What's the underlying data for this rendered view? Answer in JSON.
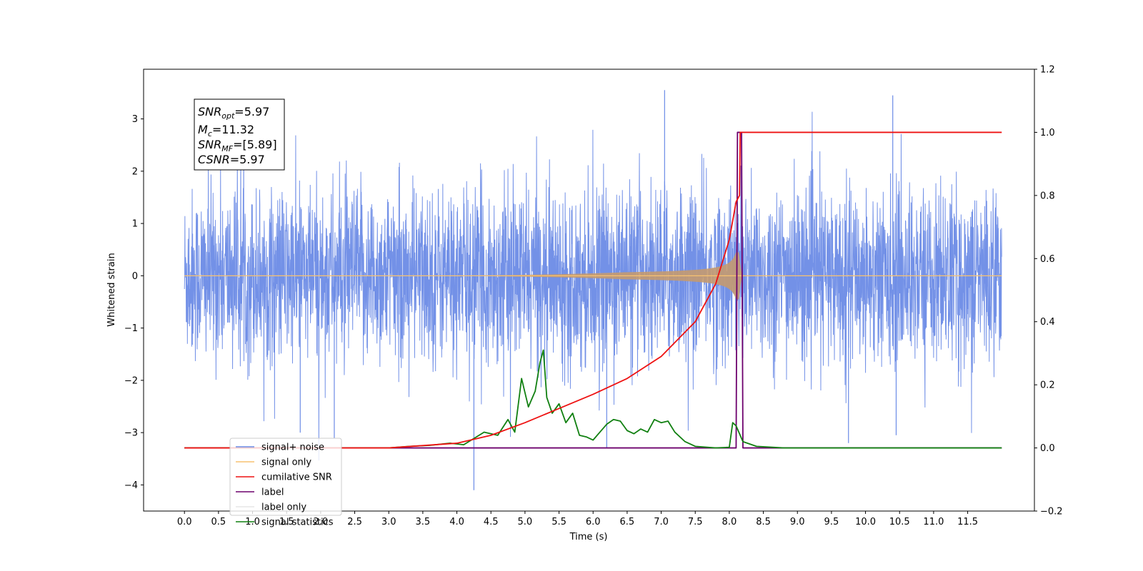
{
  "chart_data": {
    "type": "line",
    "xlabel": "Time (s)",
    "ylabel": "Whitened strain",
    "xlim": [
      -0.6,
      12.48
    ],
    "ylim": [
      -4.5,
      3.95
    ],
    "y2lim": [
      -0.2,
      1.2
    ],
    "x_ticks": [
      "0.0",
      "0.5",
      "1.0",
      "1.5",
      "2.0",
      "2.5",
      "3.0",
      "3.5",
      "4.0",
      "4.5",
      "5.0",
      "5.5",
      "6.0",
      "6.5",
      "7.0",
      "7.5",
      "8.0",
      "8.5",
      "9.0",
      "9.5",
      "10.0",
      "10.5",
      "11.0",
      "11.5"
    ],
    "y_ticks": [
      "−4",
      "−3",
      "−2",
      "−1",
      "0",
      "1",
      "2",
      "3"
    ],
    "y2_ticks": [
      "−0.2",
      "0.0",
      "0.2",
      "0.4",
      "0.6",
      "0.8",
      "1.0",
      "1.2"
    ],
    "grid": false,
    "legend_position": "lower-left",
    "annotation": {
      "lines": [
        {
          "sym": "SNR",
          "sub": "opt",
          "rest": "=5.97"
        },
        {
          "sym": "M",
          "sub": "c",
          "rest": "=11.32"
        },
        {
          "sym": "SNR",
          "sub": "MF",
          "rest": "=[5.89]"
        },
        {
          "sym": "CSNR",
          "sub": "",
          "rest": "=5.97"
        }
      ]
    },
    "series": [
      {
        "name": "signal+ noise",
        "color": "#6b8be6",
        "axis": "left",
        "summary": {
          "t_start": 0.0,
          "t_end": 12.0,
          "typical_amplitude": 1.5,
          "peak_max": 3.55,
          "peak_min": -4.1
        }
      },
      {
        "name": "signal only",
        "color": "#f7c271",
        "axis": "left",
        "summary": {
          "t_start": 0.0,
          "t_end": 12.0,
          "envelope_peak": 0.45,
          "merger_time": 8.15
        }
      },
      {
        "name": "cumilative SNR",
        "color": "#ee1111",
        "axis": "right",
        "x": [
          0.0,
          3.0,
          4.0,
          4.5,
          5.0,
          5.5,
          6.0,
          6.5,
          7.0,
          7.5,
          7.8,
          8.0,
          8.1,
          8.15,
          8.16,
          12.0
        ],
        "values": [
          0.0,
          0.0,
          0.015,
          0.04,
          0.08,
          0.125,
          0.17,
          0.22,
          0.29,
          0.4,
          0.52,
          0.66,
          0.78,
          0.8,
          1.0,
          1.0
        ]
      },
      {
        "name": "label",
        "color": "#6d006d",
        "axis": "right",
        "x": [
          0.0,
          8.1,
          8.12,
          8.18,
          8.2,
          12.0
        ],
        "values": [
          0.0,
          0.0,
          1.0,
          1.0,
          0.0,
          0.0
        ]
      },
      {
        "name": "label only",
        "color": "#e6e6e6",
        "axis": "right",
        "x": [],
        "values": []
      },
      {
        "name": "signal statistics",
        "color": "#118011",
        "axis": "right",
        "x": [
          0.0,
          3.0,
          3.3,
          3.6,
          3.9,
          4.1,
          4.4,
          4.6,
          4.75,
          4.85,
          4.95,
          5.05,
          5.15,
          5.22,
          5.27,
          5.32,
          5.4,
          5.5,
          5.6,
          5.7,
          5.8,
          5.9,
          6.0,
          6.1,
          6.2,
          6.3,
          6.4,
          6.5,
          6.6,
          6.7,
          6.8,
          6.9,
          7.0,
          7.1,
          7.2,
          7.35,
          7.5,
          7.8,
          8.0,
          8.05,
          8.1,
          8.2,
          8.4,
          8.8,
          12.0
        ],
        "values": [
          0.0,
          0.0,
          0.005,
          0.008,
          0.015,
          0.01,
          0.05,
          0.04,
          0.09,
          0.05,
          0.22,
          0.13,
          0.18,
          0.27,
          0.31,
          0.16,
          0.11,
          0.14,
          0.08,
          0.11,
          0.04,
          0.035,
          0.025,
          0.05,
          0.075,
          0.09,
          0.085,
          0.055,
          0.045,
          0.06,
          0.05,
          0.09,
          0.08,
          0.085,
          0.05,
          0.02,
          0.005,
          0.0,
          0.002,
          0.08,
          0.07,
          0.02,
          0.005,
          0.0,
          0.0
        ]
      }
    ]
  }
}
